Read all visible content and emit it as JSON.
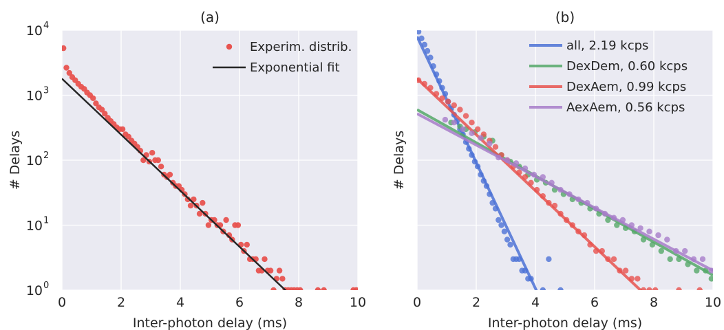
{
  "chart_data": [
    {
      "type": "scatter",
      "title": "(a)",
      "xlabel": "Inter-photon delay (ms)",
      "ylabel": "# Delays",
      "xlim": [
        0,
        10
      ],
      "ylim": [
        1,
        10000
      ],
      "yscale": "log",
      "xticks": [
        "0",
        "2",
        "4",
        "6",
        "8",
        "10"
      ],
      "yticks": [
        {
          "value": 1,
          "base": "10",
          "exp": "0"
        },
        {
          "value": 10,
          "base": "10",
          "exp": "1"
        },
        {
          "value": 100,
          "base": "10",
          "exp": "2"
        },
        {
          "value": 1000,
          "base": "10",
          "exp": "3"
        },
        {
          "value": 10000,
          "base": "10",
          "exp": "4"
        }
      ],
      "grid": true,
      "legend_position": "top-right",
      "series": [
        {
          "name": "Experim. distrib.",
          "kind": "points",
          "color": "#e8534f",
          "points": [
            [
              0.05,
              5300
            ],
            [
              0.15,
              2650
            ],
            [
              0.25,
              2200
            ],
            [
              0.35,
              1900
            ],
            [
              0.45,
              1700
            ],
            [
              0.55,
              1500
            ],
            [
              0.65,
              1350
            ],
            [
              0.75,
              1250
            ],
            [
              0.85,
              1100
            ],
            [
              0.95,
              1000
            ],
            [
              1.05,
              900
            ],
            [
              1.15,
              750
            ],
            [
              1.25,
              650
            ],
            [
              1.35,
              600
            ],
            [
              1.45,
              520
            ],
            [
              1.55,
              450
            ],
            [
              1.65,
              400
            ],
            [
              1.75,
              360
            ],
            [
              1.85,
              320
            ],
            [
              1.95,
              300
            ],
            [
              2.05,
              300
            ],
            [
              2.15,
              250
            ],
            [
              2.25,
              230
            ],
            [
              2.35,
              200
            ],
            [
              2.45,
              180
            ],
            [
              2.55,
              160
            ],
            [
              2.65,
              140
            ],
            [
              2.75,
              100
            ],
            [
              2.85,
              120
            ],
            [
              2.95,
              95
            ],
            [
              3.05,
              130
            ],
            [
              3.15,
              100
            ],
            [
              3.25,
              100
            ],
            [
              3.35,
              80
            ],
            [
              3.45,
              60
            ],
            [
              3.55,
              55
            ],
            [
              3.65,
              60
            ],
            [
              3.75,
              45
            ],
            [
              3.85,
              40
            ],
            [
              3.95,
              40
            ],
            [
              4.05,
              35
            ],
            [
              4.15,
              30
            ],
            [
              4.25,
              25
            ],
            [
              4.35,
              20
            ],
            [
              4.45,
              25
            ],
            [
              4.55,
              20
            ],
            [
              4.65,
              15
            ],
            [
              4.75,
              22
            ],
            [
              4.85,
              15
            ],
            [
              4.95,
              10
            ],
            [
              5.05,
              12
            ],
            [
              5.15,
              12
            ],
            [
              5.25,
              10
            ],
            [
              5.35,
              10
            ],
            [
              5.45,
              8
            ],
            [
              5.55,
              12
            ],
            [
              5.65,
              7
            ],
            [
              5.75,
              6
            ],
            [
              5.85,
              10
            ],
            [
              5.95,
              10
            ],
            [
              6.05,
              5
            ],
            [
              6.15,
              4
            ],
            [
              6.25,
              5
            ],
            [
              6.35,
              3
            ],
            [
              6.45,
              3
            ],
            [
              6.55,
              3
            ],
            [
              6.65,
              2
            ],
            [
              6.75,
              2
            ],
            [
              6.85,
              3
            ],
            [
              6.95,
              2
            ],
            [
              7.05,
              2
            ],
            [
              7.15,
              1
            ],
            [
              7.25,
              1.5
            ],
            [
              7.35,
              2
            ],
            [
              7.45,
              1.5
            ],
            [
              7.55,
              1
            ],
            [
              7.65,
              1
            ],
            [
              7.75,
              1
            ],
            [
              7.85,
              1
            ],
            [
              7.95,
              1
            ],
            [
              8.05,
              1
            ],
            [
              8.65,
              1
            ],
            [
              8.85,
              1
            ],
            [
              9.85,
              1
            ],
            [
              9.95,
              1
            ]
          ]
        },
        {
          "name": "Exponential fit",
          "kind": "line",
          "color": "#262626",
          "points": [
            [
              0,
              1800
            ],
            [
              7.6,
              0.95
            ]
          ]
        }
      ]
    },
    {
      "type": "scatter",
      "title": "(b)",
      "xlabel": "Inter-photon delay (ms)",
      "ylabel": "# Delays",
      "xlim": [
        0,
        10
      ],
      "ylim": [
        1,
        10000
      ],
      "yscale": "log",
      "xticks": [
        "0",
        "2",
        "4",
        "6",
        "8",
        "10"
      ],
      "grid": true,
      "legend_position": "top-right",
      "series": [
        {
          "name": "all, 2.19 kcps",
          "color": "#4c72d6",
          "fit": [
            [
              0,
              8000
            ],
            [
              4.05,
              0.95
            ]
          ],
          "points": [
            [
              0.05,
              9500
            ],
            [
              0.15,
              7500
            ],
            [
              0.25,
              6000
            ],
            [
              0.35,
              4800
            ],
            [
              0.45,
              3800
            ],
            [
              0.55,
              2800
            ],
            [
              0.65,
              2100
            ],
            [
              0.75,
              1650
            ],
            [
              0.85,
              1300
            ],
            [
              0.95,
              1050
            ],
            [
              1.05,
              800
            ],
            [
              1.15,
              620
            ],
            [
              1.25,
              500
            ],
            [
              1.35,
              400
            ],
            [
              1.45,
              300
            ],
            [
              1.55,
              250
            ],
            [
              1.65,
              190
            ],
            [
              1.75,
              150
            ],
            [
              1.85,
              120
            ],
            [
              1.95,
              95
            ],
            [
              2.05,
              80
            ],
            [
              2.15,
              60
            ],
            [
              2.25,
              48
            ],
            [
              2.35,
              40
            ],
            [
              2.45,
              30
            ],
            [
              2.55,
              22
            ],
            [
              2.65,
              18
            ],
            [
              2.75,
              12
            ],
            [
              2.85,
              10
            ],
            [
              2.95,
              8
            ],
            [
              3.05,
              6
            ],
            [
              3.15,
              5
            ],
            [
              3.25,
              3
            ],
            [
              3.35,
              3
            ],
            [
              3.45,
              3
            ],
            [
              3.55,
              2
            ],
            [
              3.65,
              2
            ],
            [
              3.75,
              1.5
            ],
            [
              3.85,
              1.5
            ],
            [
              4.25,
              1
            ],
            [
              4.45,
              3
            ],
            [
              4.85,
              1
            ]
          ]
        },
        {
          "name": "DexDem, 0.60 kcps",
          "color": "#55a868",
          "fit": [
            [
              0,
              600
            ],
            [
              10,
              1.7
            ]
          ],
          "points": [
            [
              1.15,
              380
            ],
            [
              1.45,
              330
            ],
            [
              1.65,
              300
            ],
            [
              1.95,
              270
            ],
            [
              2.25,
              230
            ],
            [
              2.55,
              200
            ],
            [
              2.85,
              120
            ],
            [
              3.15,
              95
            ],
            [
              3.45,
              80
            ],
            [
              3.75,
              60
            ],
            [
              4.05,
              50
            ],
            [
              4.35,
              45
            ],
            [
              4.65,
              35
            ],
            [
              4.95,
              30
            ],
            [
              5.25,
              25
            ],
            [
              5.55,
              22
            ],
            [
              5.85,
              18
            ],
            [
              6.15,
              15
            ],
            [
              6.45,
              12
            ],
            [
              6.75,
              10
            ],
            [
              7.05,
              9
            ],
            [
              7.35,
              8
            ],
            [
              7.65,
              6
            ],
            [
              7.95,
              5
            ],
            [
              8.25,
              4
            ],
            [
              8.55,
              3
            ],
            [
              8.85,
              3
            ],
            [
              9.15,
              2.5
            ],
            [
              9.45,
              2
            ],
            [
              9.75,
              2
            ],
            [
              9.95,
              1.5
            ]
          ]
        },
        {
          "name": "DexAem, 0.99 kcps",
          "color": "#e8534f",
          "fit": [
            [
              0,
              1800
            ],
            [
              7.6,
              0.95
            ]
          ],
          "points": [
            [
              0.05,
              1700
            ],
            [
              0.25,
              1500
            ],
            [
              0.45,
              1300
            ],
            [
              0.65,
              1050
            ],
            [
              0.85,
              900
            ],
            [
              1.05,
              800
            ],
            [
              1.25,
              700
            ],
            [
              1.45,
              600
            ],
            [
              1.65,
              480
            ],
            [
              1.85,
              380
            ],
            [
              2.05,
              300
            ],
            [
              2.25,
              250
            ],
            [
              2.45,
              200
            ],
            [
              2.65,
              160
            ],
            [
              2.85,
              120
            ],
            [
              3.05,
              100
            ],
            [
              3.25,
              80
            ],
            [
              3.45,
              65
            ],
            [
              3.65,
              55
            ],
            [
              3.85,
              45
            ],
            [
              4.05,
              35
            ],
            [
              4.25,
              28
            ],
            [
              4.45,
              22
            ],
            [
              4.65,
              20
            ],
            [
              4.85,
              15
            ],
            [
              5.05,
              12
            ],
            [
              5.25,
              10
            ],
            [
              5.45,
              8
            ],
            [
              5.65,
              7
            ],
            [
              5.85,
              5
            ],
            [
              6.05,
              4
            ],
            [
              6.25,
              4
            ],
            [
              6.45,
              3
            ],
            [
              6.65,
              3
            ],
            [
              6.85,
              2
            ],
            [
              7.05,
              2
            ],
            [
              7.25,
              1.5
            ],
            [
              7.45,
              1.5
            ],
            [
              7.65,
              1
            ],
            [
              7.85,
              1
            ],
            [
              8.05,
              1
            ],
            [
              8.85,
              1
            ],
            [
              9.55,
              1
            ]
          ]
        },
        {
          "name": "AexAem, 0.56 kcps",
          "color": "#a77dc9",
          "fit": [
            [
              0,
              520
            ],
            [
              10,
              2.0
            ]
          ],
          "points": [
            [
              0.95,
              420
            ],
            [
              1.25,
              380
            ],
            [
              1.55,
              300
            ],
            [
              1.85,
              260
            ],
            [
              2.15,
              220
            ],
            [
              2.45,
              180
            ],
            [
              2.75,
              110
            ],
            [
              3.05,
              100
            ],
            [
              3.35,
              90
            ],
            [
              3.65,
              75
            ],
            [
              3.95,
              60
            ],
            [
              4.25,
              55
            ],
            [
              4.55,
              45
            ],
            [
              4.85,
              35
            ],
            [
              5.15,
              30
            ],
            [
              5.45,
              25
            ],
            [
              5.75,
              22
            ],
            [
              6.05,
              18
            ],
            [
              6.35,
              15
            ],
            [
              6.65,
              13
            ],
            [
              6.95,
              12
            ],
            [
              7.25,
              10
            ],
            [
              7.55,
              9
            ],
            [
              7.85,
              8
            ],
            [
              8.15,
              7
            ],
            [
              8.45,
              6
            ],
            [
              8.75,
              4
            ],
            [
              9.05,
              4
            ],
            [
              9.35,
              3
            ],
            [
              9.65,
              3
            ],
            [
              9.95,
              2
            ]
          ]
        }
      ]
    }
  ]
}
